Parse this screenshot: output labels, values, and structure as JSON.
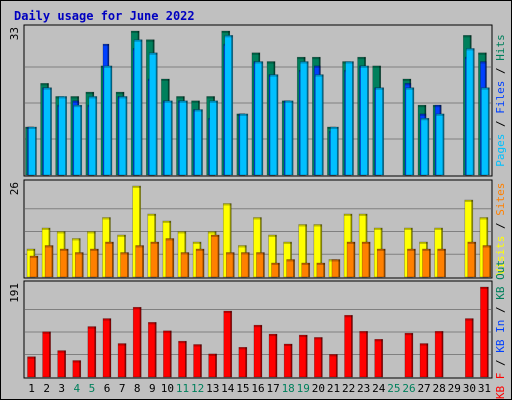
{
  "chart_data": {
    "type": "bar",
    "title": "Daily usage for June 2022",
    "categories": [
      "1",
      "2",
      "3",
      "4",
      "5",
      "6",
      "7",
      "8",
      "9",
      "10",
      "11",
      "12",
      "13",
      "14",
      "15",
      "16",
      "17",
      "18",
      "19",
      "20",
      "21",
      "22",
      "23",
      "24",
      "25",
      "26",
      "27",
      "28",
      "29",
      "30",
      "31"
    ],
    "weekend_days": [
      "4",
      "5",
      "11",
      "12",
      "18",
      "19",
      "25",
      "26"
    ],
    "panels": [
      {
        "id": "top",
        "ymax_label": "33",
        "ymax": 33,
        "side_label_parts": [
          {
            "text": "Pages",
            "color": "#00c0ff"
          },
          {
            "text": " / ",
            "color": "#000000"
          },
          {
            "text": "Files",
            "color": "#0040ff"
          },
          {
            "text": " / ",
            "color": "#000000"
          },
          {
            "text": "Hits",
            "color": "#00805c"
          }
        ],
        "series": [
          {
            "name": "Hits",
            "color": "#00805c",
            "values": [
              11,
              21,
              18,
              18,
              19,
              25,
              19,
              33,
              31,
              22,
              18,
              17,
              18,
              33,
              14,
              28,
              26,
              17,
              27,
              27,
              11,
              26,
              27,
              25,
              0,
              22,
              16,
              16,
              0,
              32,
              28
            ]
          },
          {
            "name": "Files",
            "color": "#0040ff",
            "values": [
              11,
              20,
              16,
              17,
              16,
              30,
              18,
              29,
              22,
              17,
              17,
              15,
              13,
              30,
              14,
              26,
              23,
              17,
              24,
              25,
              10,
              24,
              25,
              20,
              0,
              21,
              14,
              16,
              0,
              27,
              26
            ]
          },
          {
            "name": "Pages",
            "color": "#00c0ff",
            "values": [
              11,
              20,
              18,
              16,
              18,
              25,
              18,
              31,
              28,
              17,
              17,
              15,
              17,
              32,
              14,
              26,
              23,
              17,
              26,
              23,
              11,
              26,
              25,
              20,
              0,
              20,
              13,
              14,
              0,
              29,
              20
            ]
          }
        ]
      },
      {
        "id": "middle",
        "ymax_label": "26",
        "ymax": 26,
        "side_label_parts": [
          {
            "text": "Visits",
            "color": "#ffff00"
          },
          {
            "text": " / ",
            "color": "#000000"
          },
          {
            "text": "Sites",
            "color": "#ff8000"
          }
        ],
        "series": [
          {
            "name": "Visits",
            "color": "#ffff00",
            "values": [
              8,
              14,
              13,
              11,
              13,
              17,
              12,
              26,
              18,
              16,
              13,
              10,
              13,
              21,
              9,
              17,
              12,
              10,
              15,
              15,
              5,
              18,
              18,
              14,
              0,
              14,
              10,
              14,
              0,
              22,
              17
            ]
          },
          {
            "name": "Sites",
            "color": "#ff8000",
            "values": [
              6,
              9,
              8,
              7,
              8,
              10,
              7,
              9,
              10,
              11,
              7,
              8,
              12,
              7,
              7,
              7,
              4,
              5,
              4,
              4,
              5,
              10,
              10,
              8,
              0,
              8,
              8,
              8,
              0,
              10,
              9
            ]
          }
        ]
      },
      {
        "id": "bottom",
        "ymax_label": "191",
        "ymax": 191,
        "side_label_parts": [
          {
            "text": "KB F",
            "color": "#ff0000"
          },
          {
            "text": " / ",
            "color": "#000000"
          },
          {
            "text": "KB In",
            "color": "#0040ff"
          },
          {
            "text": " / ",
            "color": "#000000"
          },
          {
            "text": "KB Out",
            "color": "#00805c"
          }
        ],
        "series": [
          {
            "name": "KB F",
            "color": "#ff0000",
            "values": [
              43,
              96,
              56,
              35,
              107,
              124,
              71,
              148,
              116,
              98,
              76,
              69,
              49,
              140,
              63,
              110,
              91,
              70,
              89,
              84,
              48,
              131,
              97,
              80,
              0,
              93,
              71,
              97,
              0,
              124,
              191
            ]
          }
        ]
      }
    ],
    "grid": true,
    "legend": "right-side vertical labels"
  }
}
